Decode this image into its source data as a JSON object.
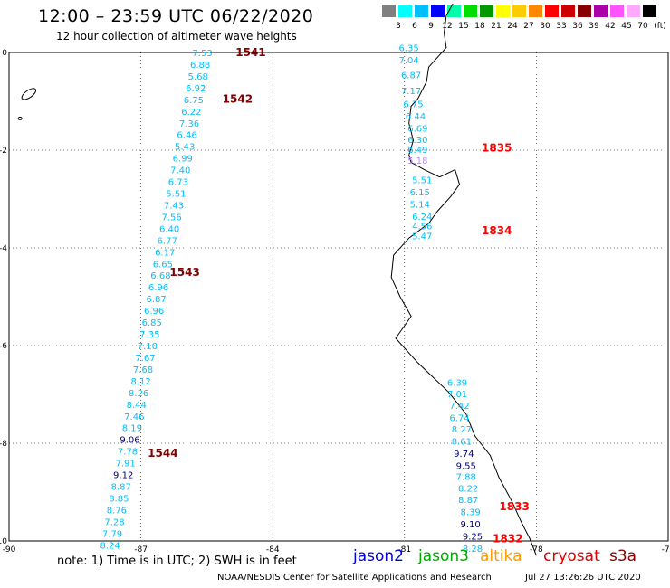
{
  "header": {
    "title": "12:00 – 23:59 UTC 06/22/2020",
    "subtitle": "12 hour collection of altimeter wave heights"
  },
  "colorbar": {
    "unit": "(ft)",
    "colors": [
      "#808080",
      "#00ffff",
      "#00bfff",
      "#0000ff",
      "#00ffaa",
      "#00dd00",
      "#009900",
      "#ffff00",
      "#ffcc00",
      "#ff8800",
      "#ff0000",
      "#cc0000",
      "#880000",
      "#aa00aa",
      "#ff55ff",
      "#ffaaff",
      "#000000"
    ],
    "labels": [
      "3",
      "6",
      "9",
      "12",
      "15",
      "18",
      "21",
      "24",
      "27",
      "30",
      "33",
      "36",
      "39",
      "42",
      "45",
      "70"
    ]
  },
  "axes": {
    "x_ticks": [
      "-90",
      "-87",
      "-84",
      "-81",
      "-78",
      "-75"
    ],
    "y_ticks": [
      "0",
      "-2",
      "-4",
      "-6",
      "-8",
      "-10"
    ],
    "lon_range": [
      -90,
      -75
    ],
    "lat_range": [
      -10,
      0
    ]
  },
  "colors": {
    "cyan": "#00bfff",
    "navy": "#000080",
    "lav": "#bb88ee",
    "dark": "#800000",
    "red": "#ff0000"
  },
  "tracks": [
    {
      "passes": [
        {
          "label": "1541",
          "lat": 0,
          "lon": -84.5,
          "color": "dark"
        },
        {
          "label": "1542",
          "lat": -0.95,
          "lon": -84.8,
          "color": "dark"
        },
        {
          "label": "1543",
          "lat": -4.5,
          "lon": -86.0,
          "color": "dark"
        },
        {
          "label": "1544",
          "lat": -8.2,
          "lon": -86.5,
          "color": "dark"
        }
      ],
      "points": [
        {
          "v": "7.53",
          "lat": 0.0,
          "lon": -85.6,
          "c": "cyan"
        },
        {
          "v": "6.88",
          "lat": -0.24,
          "lon": -85.65,
          "c": "cyan"
        },
        {
          "v": "5.68",
          "lat": -0.48,
          "lon": -85.7,
          "c": "cyan"
        },
        {
          "v": "6.92",
          "lat": -0.72,
          "lon": -85.75,
          "c": "cyan"
        },
        {
          "v": "6.75",
          "lat": -0.96,
          "lon": -85.8,
          "c": "cyan"
        },
        {
          "v": "6.22",
          "lat": -1.2,
          "lon": -85.85,
          "c": "cyan"
        },
        {
          "v": "7.36",
          "lat": -1.44,
          "lon": -85.9,
          "c": "cyan"
        },
        {
          "v": "6.46",
          "lat": -1.68,
          "lon": -85.95,
          "c": "cyan"
        },
        {
          "v": "5.43",
          "lat": -1.92,
          "lon": -86.0,
          "c": "cyan"
        },
        {
          "v": "6.99",
          "lat": -2.16,
          "lon": -86.05,
          "c": "cyan"
        },
        {
          "v": "7.40",
          "lat": -2.4,
          "lon": -86.1,
          "c": "cyan"
        },
        {
          "v": "6.73",
          "lat": -2.64,
          "lon": -86.15,
          "c": "cyan"
        },
        {
          "v": "5.51",
          "lat": -2.88,
          "lon": -86.2,
          "c": "cyan"
        },
        {
          "v": "7.43",
          "lat": -3.12,
          "lon": -86.25,
          "c": "cyan"
        },
        {
          "v": "7.56",
          "lat": -3.36,
          "lon": -86.3,
          "c": "cyan"
        },
        {
          "v": "6.40",
          "lat": -3.6,
          "lon": -86.35,
          "c": "cyan"
        },
        {
          "v": "6.77",
          "lat": -3.84,
          "lon": -86.4,
          "c": "cyan"
        },
        {
          "v": "6.17",
          "lat": -4.08,
          "lon": -86.45,
          "c": "cyan"
        },
        {
          "v": "6.65",
          "lat": -4.32,
          "lon": -86.5,
          "c": "cyan"
        },
        {
          "v": "6.68",
          "lat": -4.56,
          "lon": -86.55,
          "c": "cyan"
        },
        {
          "v": "6.96",
          "lat": -4.8,
          "lon": -86.6,
          "c": "cyan"
        },
        {
          "v": "6.87",
          "lat": -5.04,
          "lon": -86.65,
          "c": "cyan"
        },
        {
          "v": "6.96",
          "lat": -5.28,
          "lon": -86.7,
          "c": "cyan"
        },
        {
          "v": "6.85",
          "lat": -5.52,
          "lon": -86.75,
          "c": "cyan"
        },
        {
          "v": "7.35",
          "lat": -5.76,
          "lon": -86.8,
          "c": "cyan"
        },
        {
          "v": "7.10",
          "lat": -6.0,
          "lon": -86.85,
          "c": "cyan"
        },
        {
          "v": "7.67",
          "lat": -6.24,
          "lon": -86.9,
          "c": "cyan"
        },
        {
          "v": "7.68",
          "lat": -6.48,
          "lon": -86.95,
          "c": "cyan"
        },
        {
          "v": "8.12",
          "lat": -6.72,
          "lon": -87.0,
          "c": "cyan"
        },
        {
          "v": "8.26",
          "lat": -6.96,
          "lon": -87.05,
          "c": "cyan"
        },
        {
          "v": "8.44",
          "lat": -7.2,
          "lon": -87.1,
          "c": "cyan"
        },
        {
          "v": "7.46",
          "lat": -7.44,
          "lon": -87.15,
          "c": "cyan"
        },
        {
          "v": "8.19",
          "lat": -7.68,
          "lon": -87.2,
          "c": "cyan"
        },
        {
          "v": "9.06",
          "lat": -7.92,
          "lon": -87.25,
          "c": "navy"
        },
        {
          "v": "7.78",
          "lat": -8.16,
          "lon": -87.3,
          "c": "cyan"
        },
        {
          "v": "7.91",
          "lat": -8.4,
          "lon": -87.35,
          "c": "cyan"
        },
        {
          "v": "9.12",
          "lat": -8.64,
          "lon": -87.4,
          "c": "navy"
        },
        {
          "v": "8.87",
          "lat": -8.88,
          "lon": -87.45,
          "c": "cyan"
        },
        {
          "v": "8.85",
          "lat": -9.12,
          "lon": -87.5,
          "c": "cyan"
        },
        {
          "v": "8.76",
          "lat": -9.36,
          "lon": -87.55,
          "c": "cyan"
        },
        {
          "v": "7.28",
          "lat": -9.6,
          "lon": -87.6,
          "c": "cyan"
        },
        {
          "v": "7.79",
          "lat": -9.84,
          "lon": -87.65,
          "c": "cyan"
        },
        {
          "v": "8.24",
          "lat": -10.08,
          "lon": -87.7,
          "c": "cyan"
        }
      ]
    },
    {
      "passes": [
        {
          "label": "1835",
          "lat": -1.95,
          "lon": -78.9,
          "color": "red"
        },
        {
          "label": "1834",
          "lat": -3.65,
          "lon": -78.9,
          "color": "red"
        }
      ],
      "points": [
        {
          "v": "6.35",
          "lat": 0.1,
          "lon": -80.9,
          "c": "cyan"
        },
        {
          "v": "7.04",
          "lat": -0.15,
          "lon": -80.9,
          "c": "cyan"
        },
        {
          "v": "6.87",
          "lat": -0.45,
          "lon": -80.85,
          "c": "cyan"
        },
        {
          "v": "7.17",
          "lat": -0.78,
          "lon": -80.85,
          "c": "cyan"
        },
        {
          "v": "6.75",
          "lat": -1.05,
          "lon": -80.8,
          "c": "cyan"
        },
        {
          "v": "6.44",
          "lat": -1.3,
          "lon": -80.75,
          "c": "cyan"
        },
        {
          "v": "6.69",
          "lat": -1.55,
          "lon": -80.7,
          "c": "cyan"
        },
        {
          "v": "6.30",
          "lat": -1.78,
          "lon": -80.7,
          "c": "cyan"
        },
        {
          "v": "6.49",
          "lat": -1.98,
          "lon": -80.7,
          "c": "cyan"
        },
        {
          "v": "5.18",
          "lat": -2.2,
          "lon": -80.7,
          "c": "lav"
        },
        {
          "v": "5.51",
          "lat": -2.6,
          "lon": -80.6,
          "c": "cyan"
        },
        {
          "v": "6.15",
          "lat": -2.85,
          "lon": -80.65,
          "c": "cyan"
        },
        {
          "v": "5.14",
          "lat": -3.1,
          "lon": -80.65,
          "c": "cyan"
        },
        {
          "v": "6.24",
          "lat": -3.35,
          "lon": -80.6,
          "c": "cyan"
        },
        {
          "v": "4.56",
          "lat": -3.55,
          "lon": -80.6,
          "c": "cyan"
        },
        {
          "v": "5.47",
          "lat": -3.75,
          "lon": -80.6,
          "c": "cyan"
        }
      ]
    },
    {
      "passes": [
        {
          "label": "1833",
          "lat": -9.3,
          "lon": -78.5,
          "color": "red"
        },
        {
          "label": "1832",
          "lat": -9.95,
          "lon": -78.65,
          "color": "red"
        }
      ],
      "points": [
        {
          "v": "6.39",
          "lat": -6.75,
          "lon": -79.8,
          "c": "cyan"
        },
        {
          "v": "7.01",
          "lat": -6.98,
          "lon": -79.8,
          "c": "cyan"
        },
        {
          "v": "7.42",
          "lat": -7.22,
          "lon": -79.75,
          "c": "cyan"
        },
        {
          "v": "6.74",
          "lat": -7.47,
          "lon": -79.75,
          "c": "cyan"
        },
        {
          "v": "8.27",
          "lat": -7.7,
          "lon": -79.7,
          "c": "cyan"
        },
        {
          "v": "8.61",
          "lat": -7.95,
          "lon": -79.7,
          "c": "cyan"
        },
        {
          "v": "9.74",
          "lat": -8.2,
          "lon": -79.65,
          "c": "navy"
        },
        {
          "v": "9.55",
          "lat": -8.45,
          "lon": -79.6,
          "c": "navy"
        },
        {
          "v": "7.88",
          "lat": -8.68,
          "lon": -79.6,
          "c": "cyan"
        },
        {
          "v": "8.22",
          "lat": -8.92,
          "lon": -79.55,
          "c": "cyan"
        },
        {
          "v": "8.87",
          "lat": -9.15,
          "lon": -79.55,
          "c": "cyan"
        },
        {
          "v": "8.39",
          "lat": -9.4,
          "lon": -79.5,
          "c": "cyan"
        },
        {
          "v": "9.10",
          "lat": -9.65,
          "lon": -79.5,
          "c": "navy"
        },
        {
          "v": "9.25",
          "lat": -9.9,
          "lon": -79.45,
          "c": "navy"
        },
        {
          "v": "8.28",
          "lat": -10.15,
          "lon": -79.45,
          "c": "cyan"
        }
      ]
    }
  ],
  "footer": {
    "note": "note:  1) Time is in UTC;  2) SWH is in feet",
    "satellites": [
      {
        "name": "jason2",
        "color": "#0000dd"
      },
      {
        "name": "jason3",
        "color": "#00aa00"
      },
      {
        "name": "altika",
        "color": "#ff9900"
      },
      {
        "name": "cryosat",
        "color": "#dd0000"
      },
      {
        "name": "s3a",
        "color": "#880000"
      }
    ],
    "credit": "NOAA/NESDIS Center for Satellite Applications and Research",
    "timestamp": "Jul 27 13:26:26 UTC 2020"
  }
}
